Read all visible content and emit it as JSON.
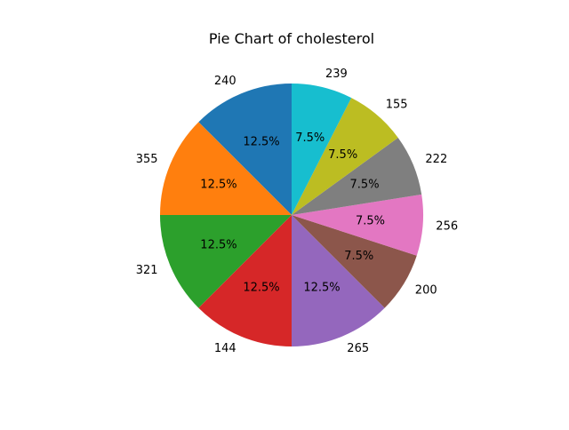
{
  "chart_data": {
    "type": "pie",
    "title": "Pie Chart of cholesterol",
    "labels": [
      "240",
      "355",
      "321",
      "144",
      "265",
      "200",
      "256",
      "222",
      "155",
      "239"
    ],
    "values": [
      12.5,
      12.5,
      12.5,
      12.5,
      12.5,
      7.5,
      7.5,
      7.5,
      7.5,
      7.5
    ],
    "percent_labels": [
      "12.5%",
      "12.5%",
      "12.5%",
      "12.5%",
      "12.5%",
      "7.5%",
      "7.5%",
      "7.5%",
      "7.5%",
      "7.5%"
    ],
    "colors": [
      "#1f77b4",
      "#ff7f0e",
      "#2ca02c",
      "#d62728",
      "#9467bd",
      "#8c564b",
      "#e377c2",
      "#7f7f7f",
      "#bcbd22",
      "#17becf"
    ],
    "start_angle_deg": 90,
    "direction": "counterclockwise"
  }
}
